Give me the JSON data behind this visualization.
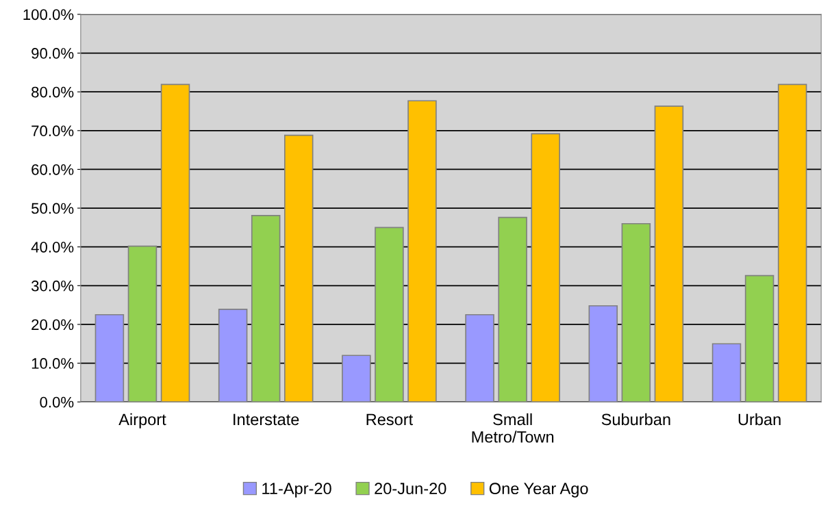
{
  "chart_data": {
    "type": "bar",
    "categories": [
      "Airport",
      "Interstate",
      "Resort",
      "Small\nMetro/Town",
      "Suburban",
      "Urban"
    ],
    "series": [
      {
        "name": "11-Apr-20",
        "color": "#9999ff",
        "values": [
          22.5,
          23.9,
          12.0,
          22.5,
          24.8,
          15.0
        ]
      },
      {
        "name": "20-Jun-20",
        "color": "#92d050",
        "values": [
          40.2,
          48.1,
          45.0,
          47.6,
          46.0,
          32.6
        ]
      },
      {
        "name": "One Year Ago",
        "color": "#ffc000",
        "values": [
          81.9,
          68.8,
          77.7,
          69.2,
          76.3,
          81.9
        ]
      }
    ],
    "ylim": [
      0,
      100
    ],
    "yticks": [
      {
        "value": 0,
        "label": "0.0%"
      },
      {
        "value": 10,
        "label": "10.0%"
      },
      {
        "value": 20,
        "label": "20.0%"
      },
      {
        "value": 30,
        "label": "30.0%"
      },
      {
        "value": 40,
        "label": "40.0%"
      },
      {
        "value": 50,
        "label": "50.0%"
      },
      {
        "value": 60,
        "label": "60.0%"
      },
      {
        "value": 70,
        "label": "70.0%"
      },
      {
        "value": 80,
        "label": "80.0%"
      },
      {
        "value": 90,
        "label": "90.0%"
      },
      {
        "value": 100,
        "label": "100.0%"
      }
    ],
    "grid": "y",
    "legend": "bottom"
  }
}
